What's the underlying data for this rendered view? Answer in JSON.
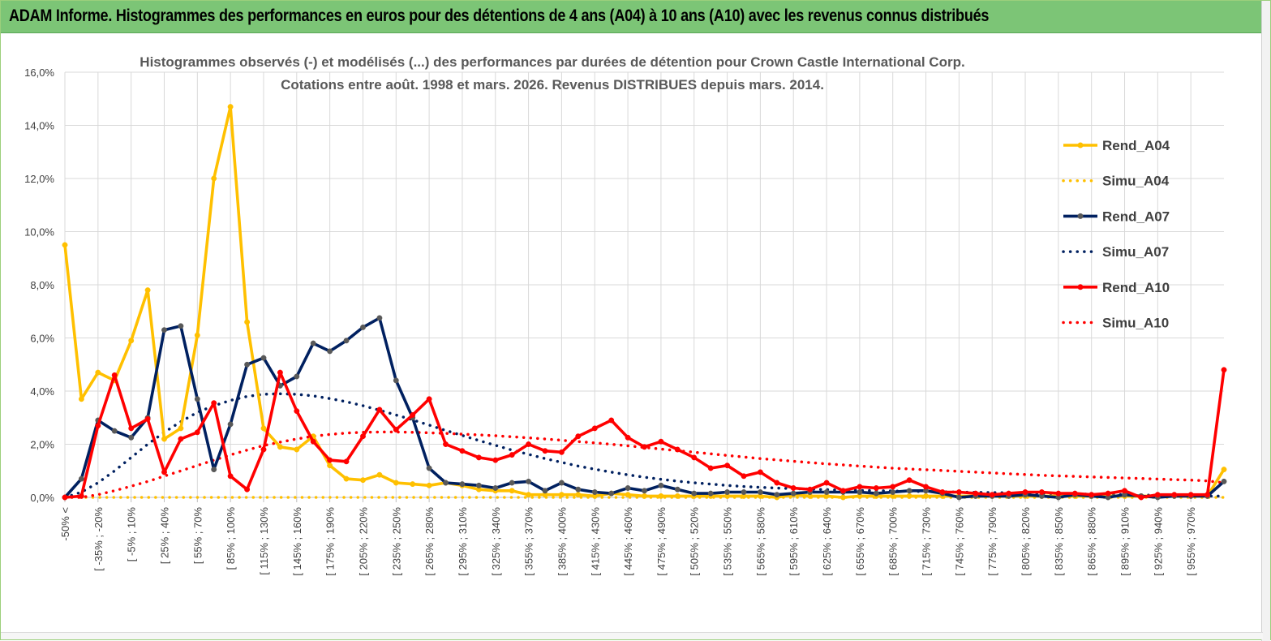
{
  "banner": {
    "title": "ADAM Informe. Histogrammes des performances en euros pour des détentions de 4 ans (A04) à 10 ans (A10) avec les revenus connus distribués"
  },
  "colors": {
    "A04": "#ffc000",
    "A07": "#002060",
    "A10": "#ff0000",
    "marker_A07": "#595959",
    "grid": "#d9d9d9",
    "banner": "#7cc576"
  },
  "chart_data": {
    "type": "line",
    "title_line1": "Histogrammes observés (-) et modélisés (...) des performances par durées de détention pour Crown Castle International Corp.",
    "title_line2": "Cotations entre août. 1998 et mars. 2026. Revenus DISTRIBUES depuis mars. 2014.",
    "ylim": [
      0,
      16
    ],
    "yticks": [
      "0,0%",
      "2,0%",
      "4,0%",
      "6,0%",
      "8,0%",
      "10,0%",
      "12,0%",
      "14,0%",
      "16,0%"
    ],
    "x_labels": [
      "-50% <",
      "[ -35% ; -20%",
      "[ -5% ; 10%",
      "[ 25% ; 40%",
      "[ 55% ; 70%",
      "[ 85% ; 100%",
      "[ 115% ; 130%",
      "[ 145% ; 160%",
      "[ 175% ; 190%",
      "[ 205% ; 220%",
      "[ 235% ; 250%",
      "[ 265% ; 280%",
      "[ 295% ; 310%",
      "[ 325% ; 340%",
      "[ 355% ; 370%",
      "[ 385% ; 400%",
      "[ 415% ; 430%",
      "[ 445% ; 460%",
      "[ 475% ; 490%",
      "[ 505% ; 520%",
      "[ 535% ; 550%",
      "[ 565% ; 580%",
      "[ 595% ; 610%",
      "[ 625% ; 640%",
      "[ 655% ; 670%",
      "[ 685% ; 700%",
      "[ 715% ; 730%",
      "[ 745% ; 760%",
      "[ 775% ; 790%",
      "[ 805% ; 820%",
      "[ 835% ; 850%",
      "[ 865% ; 880%",
      "[ 895% ; 910%",
      "[ 925% ; 940%",
      "[ 955% ; 970%"
    ],
    "legend": [
      "Rend_A04",
      "Simu_A04",
      "Rend_A07",
      "Simu_A07",
      "Rend_A10",
      "Simu_A10"
    ],
    "series": [
      {
        "name": "Rend_A04",
        "style": "solid",
        "color": "#ffc000",
        "values": [
          9.5,
          3.7,
          4.7,
          4.4,
          5.9,
          7.8,
          2.2,
          2.6,
          6.1,
          12.0,
          14.7,
          6.6,
          2.6,
          1.9,
          1.8,
          2.3,
          1.2,
          0.7,
          0.65,
          0.85,
          0.55,
          0.5,
          0.45,
          0.55,
          0.45,
          0.3,
          0.25,
          0.25,
          0.1,
          0.1,
          0.1,
          0.1,
          0.05,
          0.15,
          0.1,
          0.05,
          0.05,
          0.05,
          0.05,
          0.05,
          0.05,
          0.05,
          0.05,
          0.0,
          0.1,
          0.05,
          0.05,
          0.0,
          0.05,
          0.05,
          0.05,
          0.05,
          0.05,
          0.05,
          0.05,
          0.05,
          0.05,
          0.05,
          0.05,
          0.05,
          0.05,
          0.05,
          0.05,
          0.05,
          0.05,
          0.05,
          0.05,
          0.05,
          0.05,
          0.05,
          1.05
        ]
      },
      {
        "name": "Simu_A04",
        "style": "dotted",
        "color": "#ffc000",
        "values": [
          0.0,
          0.0,
          0.0,
          0.0,
          0.0,
          0.0,
          0.0,
          0.0,
          0.0,
          0.0,
          0.0,
          0.0,
          0.0,
          0.0,
          0.0,
          0.0,
          0.0,
          0.0,
          0.0,
          0.0,
          0.0,
          0.0,
          0.0,
          0.0,
          0.0,
          0.0,
          0.0,
          0.0,
          0.0,
          0.0,
          0.0,
          0.0,
          0.0,
          0.0,
          0.0,
          0.0,
          0.0,
          0.0,
          0.0,
          0.0,
          0.0,
          0.0,
          0.0,
          0.0,
          0.0,
          0.0,
          0.0,
          0.0,
          0.0,
          0.0,
          0.0,
          0.0,
          0.0,
          0.0,
          0.0,
          0.0,
          0.0,
          0.0,
          0.0,
          0.0,
          0.0,
          0.0,
          0.0,
          0.0,
          0.0,
          0.0,
          0.0,
          0.0,
          0.0,
          0.0,
          0.0
        ]
      },
      {
        "name": "Rend_A07",
        "style": "solid",
        "color": "#002060",
        "values": [
          0.0,
          0.7,
          2.9,
          2.5,
          2.25,
          3.0,
          6.3,
          6.45,
          3.7,
          1.05,
          2.75,
          5.0,
          5.25,
          4.2,
          4.55,
          5.8,
          5.5,
          5.9,
          6.4,
          6.75,
          4.4,
          3.0,
          1.1,
          0.55,
          0.5,
          0.45,
          0.35,
          0.55,
          0.6,
          0.25,
          0.55,
          0.3,
          0.2,
          0.15,
          0.35,
          0.25,
          0.45,
          0.3,
          0.15,
          0.15,
          0.2,
          0.2,
          0.2,
          0.1,
          0.15,
          0.2,
          0.2,
          0.2,
          0.2,
          0.15,
          0.2,
          0.25,
          0.25,
          0.15,
          0.0,
          0.05,
          0.05,
          0.05,
          0.1,
          0.05,
          0.0,
          0.1,
          0.05,
          0.0,
          0.1,
          0.05,
          0.0,
          0.05,
          0.05,
          0.05,
          0.6
        ]
      },
      {
        "name": "Simu_A07",
        "style": "dotted",
        "color": "#002060",
        "values": [
          0.0,
          0.2,
          0.55,
          1.0,
          1.5,
          2.0,
          2.45,
          2.85,
          3.2,
          3.45,
          3.65,
          3.8,
          3.88,
          3.9,
          3.88,
          3.82,
          3.72,
          3.6,
          3.45,
          3.28,
          3.1,
          2.92,
          2.72,
          2.52,
          2.33,
          2.14,
          1.96,
          1.78,
          1.62,
          1.46,
          1.32,
          1.18,
          1.06,
          0.95,
          0.85,
          0.76,
          0.68,
          0.61,
          0.55,
          0.5,
          0.45,
          0.41,
          0.38,
          0.35,
          0.33,
          0.31,
          0.29,
          0.27,
          0.26,
          0.25,
          0.24,
          0.23,
          0.22,
          0.21,
          0.2,
          0.19,
          0.18,
          0.17,
          0.16,
          0.15,
          0.14,
          0.13,
          0.12,
          0.11,
          0.1,
          0.09,
          0.08,
          0.07,
          0.06,
          0.05,
          0.05
        ]
      },
      {
        "name": "Rend_A10",
        "style": "solid",
        "color": "#ff0000",
        "values": [
          0.0,
          0.05,
          2.7,
          4.6,
          2.6,
          2.95,
          0.95,
          2.2,
          2.45,
          3.55,
          0.8,
          0.3,
          1.8,
          4.7,
          3.25,
          2.1,
          1.4,
          1.35,
          2.3,
          3.3,
          2.55,
          3.1,
          3.7,
          2.0,
          1.75,
          1.5,
          1.4,
          1.6,
          2.0,
          1.75,
          1.7,
          2.3,
          2.6,
          2.9,
          2.25,
          1.9,
          2.1,
          1.8,
          1.5,
          1.1,
          1.2,
          0.8,
          0.95,
          0.55,
          0.35,
          0.3,
          0.55,
          0.25,
          0.4,
          0.35,
          0.4,
          0.65,
          0.4,
          0.2,
          0.2,
          0.15,
          0.1,
          0.15,
          0.2,
          0.2,
          0.15,
          0.15,
          0.1,
          0.15,
          0.25,
          0.0,
          0.1,
          0.1,
          0.1,
          0.1,
          4.8
        ]
      },
      {
        "name": "Simu_A10",
        "style": "dotted",
        "color": "#ff0000",
        "values": [
          0.0,
          0.0,
          0.1,
          0.25,
          0.42,
          0.6,
          0.8,
          1.0,
          1.2,
          1.4,
          1.6,
          1.78,
          1.95,
          2.08,
          2.2,
          2.3,
          2.37,
          2.42,
          2.45,
          2.46,
          2.46,
          2.45,
          2.43,
          2.41,
          2.38,
          2.35,
          2.32,
          2.28,
          2.24,
          2.2,
          2.15,
          2.1,
          2.05,
          2.0,
          1.94,
          1.88,
          1.82,
          1.76,
          1.7,
          1.64,
          1.58,
          1.52,
          1.46,
          1.41,
          1.36,
          1.31,
          1.26,
          1.22,
          1.18,
          1.14,
          1.1,
          1.07,
          1.04,
          1.01,
          0.98,
          0.95,
          0.92,
          0.89,
          0.86,
          0.83,
          0.81,
          0.79,
          0.77,
          0.75,
          0.73,
          0.71,
          0.69,
          0.67,
          0.65,
          0.62,
          0.55
        ]
      }
    ]
  }
}
